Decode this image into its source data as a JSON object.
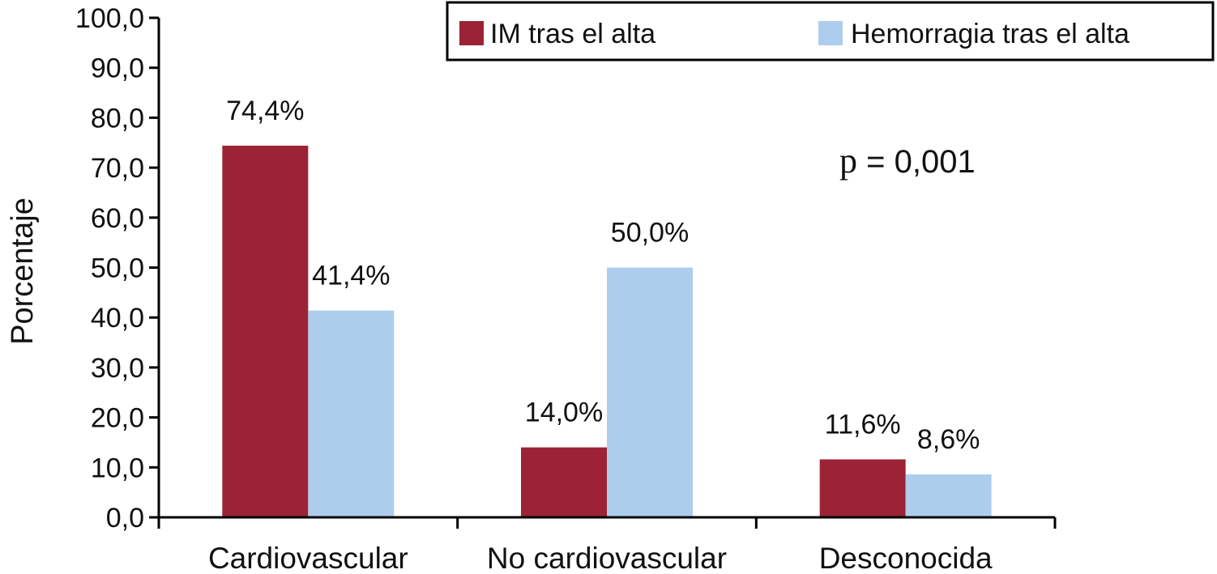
{
  "chart_data": {
    "type": "bar",
    "title": "",
    "xlabel": "",
    "ylabel": "Porcentaje",
    "ylim": [
      0,
      100
    ],
    "yticks": [
      "0,0",
      "10,0",
      "20,0",
      "30,0",
      "40,0",
      "50,0",
      "60,0",
      "70,0",
      "80,0",
      "90,0",
      "100,0"
    ],
    "categories": [
      "Cardiovascular",
      "No cardiovascular",
      "Desconocida"
    ],
    "series": [
      {
        "name": "IM tras el alta",
        "color": "#9b2335",
        "values": [
          74.4,
          14.0,
          11.6
        ],
        "labels": [
          "74,4%",
          "14,0%",
          "11,6%"
        ]
      },
      {
        "name": "Hemorragia tras el alta",
        "color": "#adcdec",
        "values": [
          41.4,
          50.0,
          8.6
        ],
        "labels": [
          "41,4%",
          "50,0%",
          "8,6%"
        ]
      }
    ],
    "legend_position": "top-right",
    "annotation": {
      "p_symbol": "p",
      "text": " = 0,001"
    }
  }
}
